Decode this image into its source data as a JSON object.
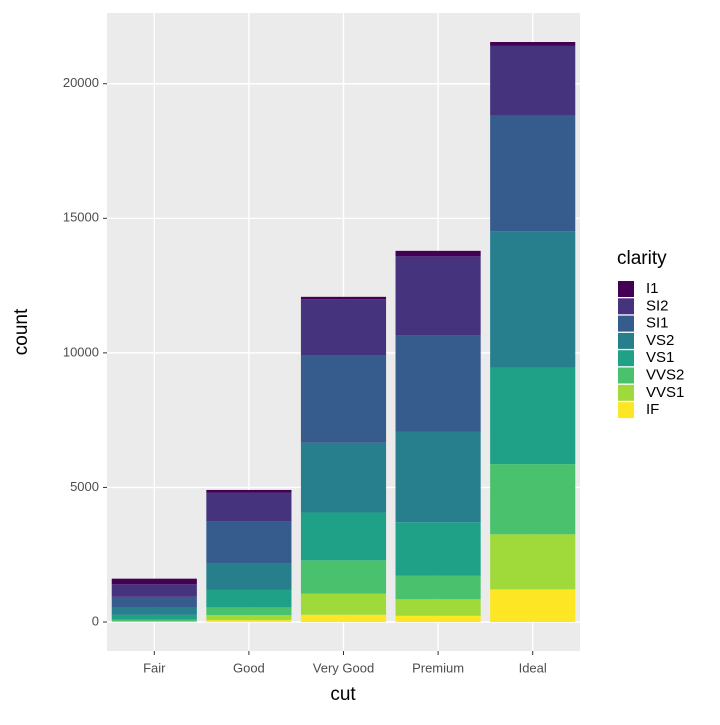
{
  "chart_data": {
    "type": "stacked-bar",
    "x_label": "cut",
    "y_label": "count",
    "legend_title": "clarity",
    "categories": [
      "Fair",
      "Good",
      "Very Good",
      "Premium",
      "Ideal"
    ],
    "series": [
      {
        "name": "I1",
        "color": "#440154",
        "values": [
          210,
          96,
          84,
          205,
          146
        ]
      },
      {
        "name": "SI2",
        "color": "#46337E",
        "values": [
          466,
          1081,
          2100,
          2949,
          2598
        ]
      },
      {
        "name": "SI1",
        "color": "#365C8D",
        "values": [
          408,
          1560,
          3240,
          3575,
          4282
        ]
      },
      {
        "name": "VS2",
        "color": "#277F8E",
        "values": [
          261,
          978,
          2591,
          3357,
          5071
        ]
      },
      {
        "name": "VS1",
        "color": "#1FA187",
        "values": [
          170,
          648,
          1775,
          1989,
          3589
        ]
      },
      {
        "name": "VVS2",
        "color": "#4AC16D",
        "values": [
          69,
          286,
          1235,
          870,
          2606
        ]
      },
      {
        "name": "VVS1",
        "color": "#9FDA3A",
        "values": [
          17,
          186,
          789,
          616,
          2047
        ]
      },
      {
        "name": "IF",
        "color": "#FDE725",
        "values": [
          9,
          71,
          268,
          230,
          1212
        ]
      }
    ],
    "ylim": [
      -1077.55,
      22628.55
    ],
    "yticks": [
      0,
      5000,
      10000,
      15000,
      20000
    ],
    "grid": true,
    "legend": "right"
  }
}
